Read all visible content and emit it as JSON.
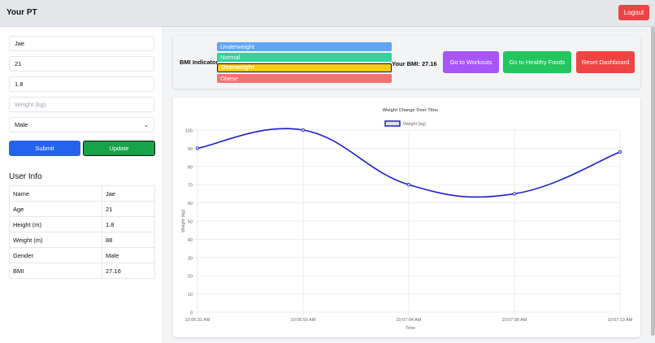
{
  "header": {
    "title": "Your PT",
    "logout": "Logout"
  },
  "form": {
    "name": "Jae",
    "age": "21",
    "height": "1.8",
    "weight_placeholder": "Weight (kg)",
    "gender": "Male",
    "submit": "Submit",
    "update": "Update"
  },
  "user_info": {
    "title": "User Info",
    "rows": [
      [
        "Name",
        "Jae"
      ],
      [
        "Age",
        "21"
      ],
      [
        "Height (m)",
        "1.8"
      ],
      [
        "Weight (m)",
        "88"
      ],
      [
        "Gender",
        "Male"
      ],
      [
        "BMI",
        "27.16"
      ]
    ]
  },
  "bmi": {
    "label": "BMI Indicator",
    "categories": [
      {
        "name": "Underweight",
        "color": "#60a5fa"
      },
      {
        "name": "Normal",
        "color": "#34d399"
      },
      {
        "name": "Overweight",
        "color": "#facc15"
      },
      {
        "name": "Obese",
        "color": "#f87171"
      }
    ],
    "active": "Overweight",
    "your_bmi": "Your BMI: 27.16"
  },
  "actions": {
    "workouts": "Go to Workouts",
    "foods": "Go to Healthy Foods",
    "reset": "Reset Dashboard"
  },
  "chart_data": {
    "type": "line",
    "title": "Weight Change Over Time",
    "xlabel": "Time",
    "ylabel": "Weight (kg)",
    "legend": "Weight (kg)",
    "x": [
      "10:06:31 AM",
      "10:06:59 AM",
      "10:07:04 AM",
      "10:07:08 AM",
      "10:07:13 AM"
    ],
    "series": [
      {
        "name": "Weight (kg)",
        "values": [
          90,
          100,
          70,
          65,
          88
        ],
        "color": "#1e1ec8"
      }
    ],
    "ylim": [
      0,
      100
    ],
    "yticks": [
      0,
      10,
      20,
      30,
      40,
      50,
      60,
      70,
      80,
      90,
      100
    ],
    "grid": true,
    "legend_position": "top"
  }
}
